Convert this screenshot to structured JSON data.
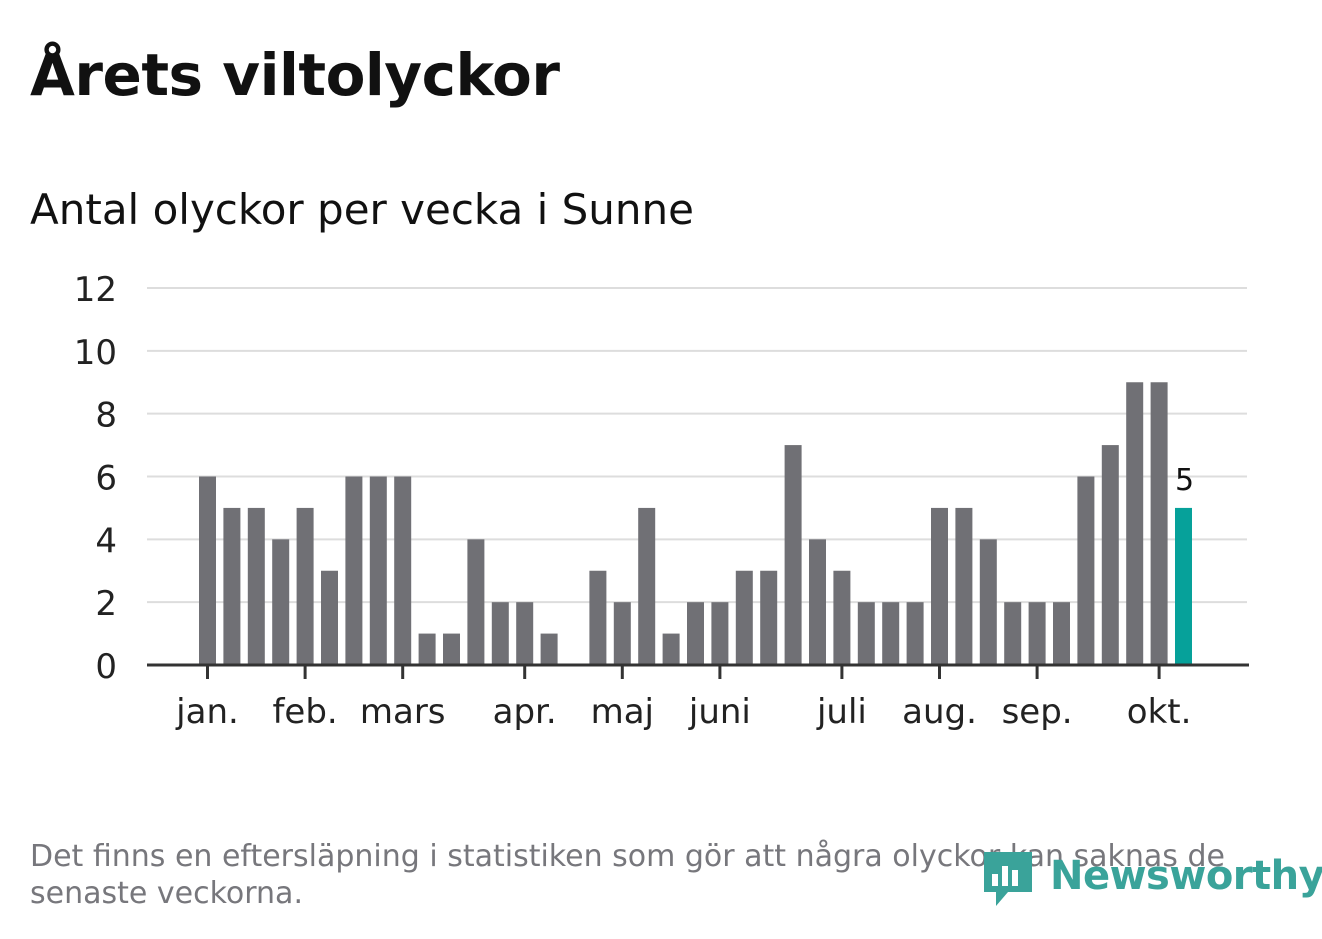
{
  "header": {
    "title": "Årets viltolyckor",
    "subtitle": "Antal olyckor per vecka i Sunne"
  },
  "chart_data": {
    "type": "bar",
    "title": "Årets viltolyckor",
    "subtitle": "Antal olyckor per vecka i Sunne",
    "xlabel": "",
    "ylabel": "",
    "ylim": [
      0,
      12
    ],
    "yticks": [
      "0",
      "2",
      "4",
      "6",
      "8",
      "10",
      "12"
    ],
    "grid": true,
    "legend": "none",
    "values": [
      6,
      5,
      5,
      4,
      5,
      3,
      6,
      6,
      6,
      1,
      1,
      4,
      2,
      2,
      1,
      0,
      3,
      2,
      5,
      1,
      2,
      2,
      3,
      3,
      7,
      4,
      3,
      2,
      2,
      2,
      5,
      5,
      4,
      2,
      2,
      2,
      6,
      7,
      9,
      9,
      5
    ],
    "highlight_index": 40,
    "highlight_label": "5",
    "month_labels": [
      {
        "label": "jan.",
        "week_index": 0
      },
      {
        "label": "feb.",
        "week_index": 4
      },
      {
        "label": "mars",
        "week_index": 8
      },
      {
        "label": "apr.",
        "week_index": 13
      },
      {
        "label": "maj",
        "week_index": 17
      },
      {
        "label": "juni",
        "week_index": 21
      },
      {
        "label": "juli",
        "week_index": 26
      },
      {
        "label": "aug.",
        "week_index": 30
      },
      {
        "label": "sep.",
        "week_index": 34
      },
      {
        "label": "okt.",
        "week_index": 39
      }
    ],
    "colors": {
      "bar": "#707075",
      "highlight": "#06a19a",
      "grid": "#dddddd",
      "axis": "#333333"
    }
  },
  "footer": {
    "note": "Det finns en eftersläpning i statistiken som gör att några olyckor kan saknas de senaste veckorna.",
    "logo_text": "Newsworthy",
    "logo_icon": "bar-chart-bubble-icon",
    "logo_color": "#3aa39a"
  }
}
